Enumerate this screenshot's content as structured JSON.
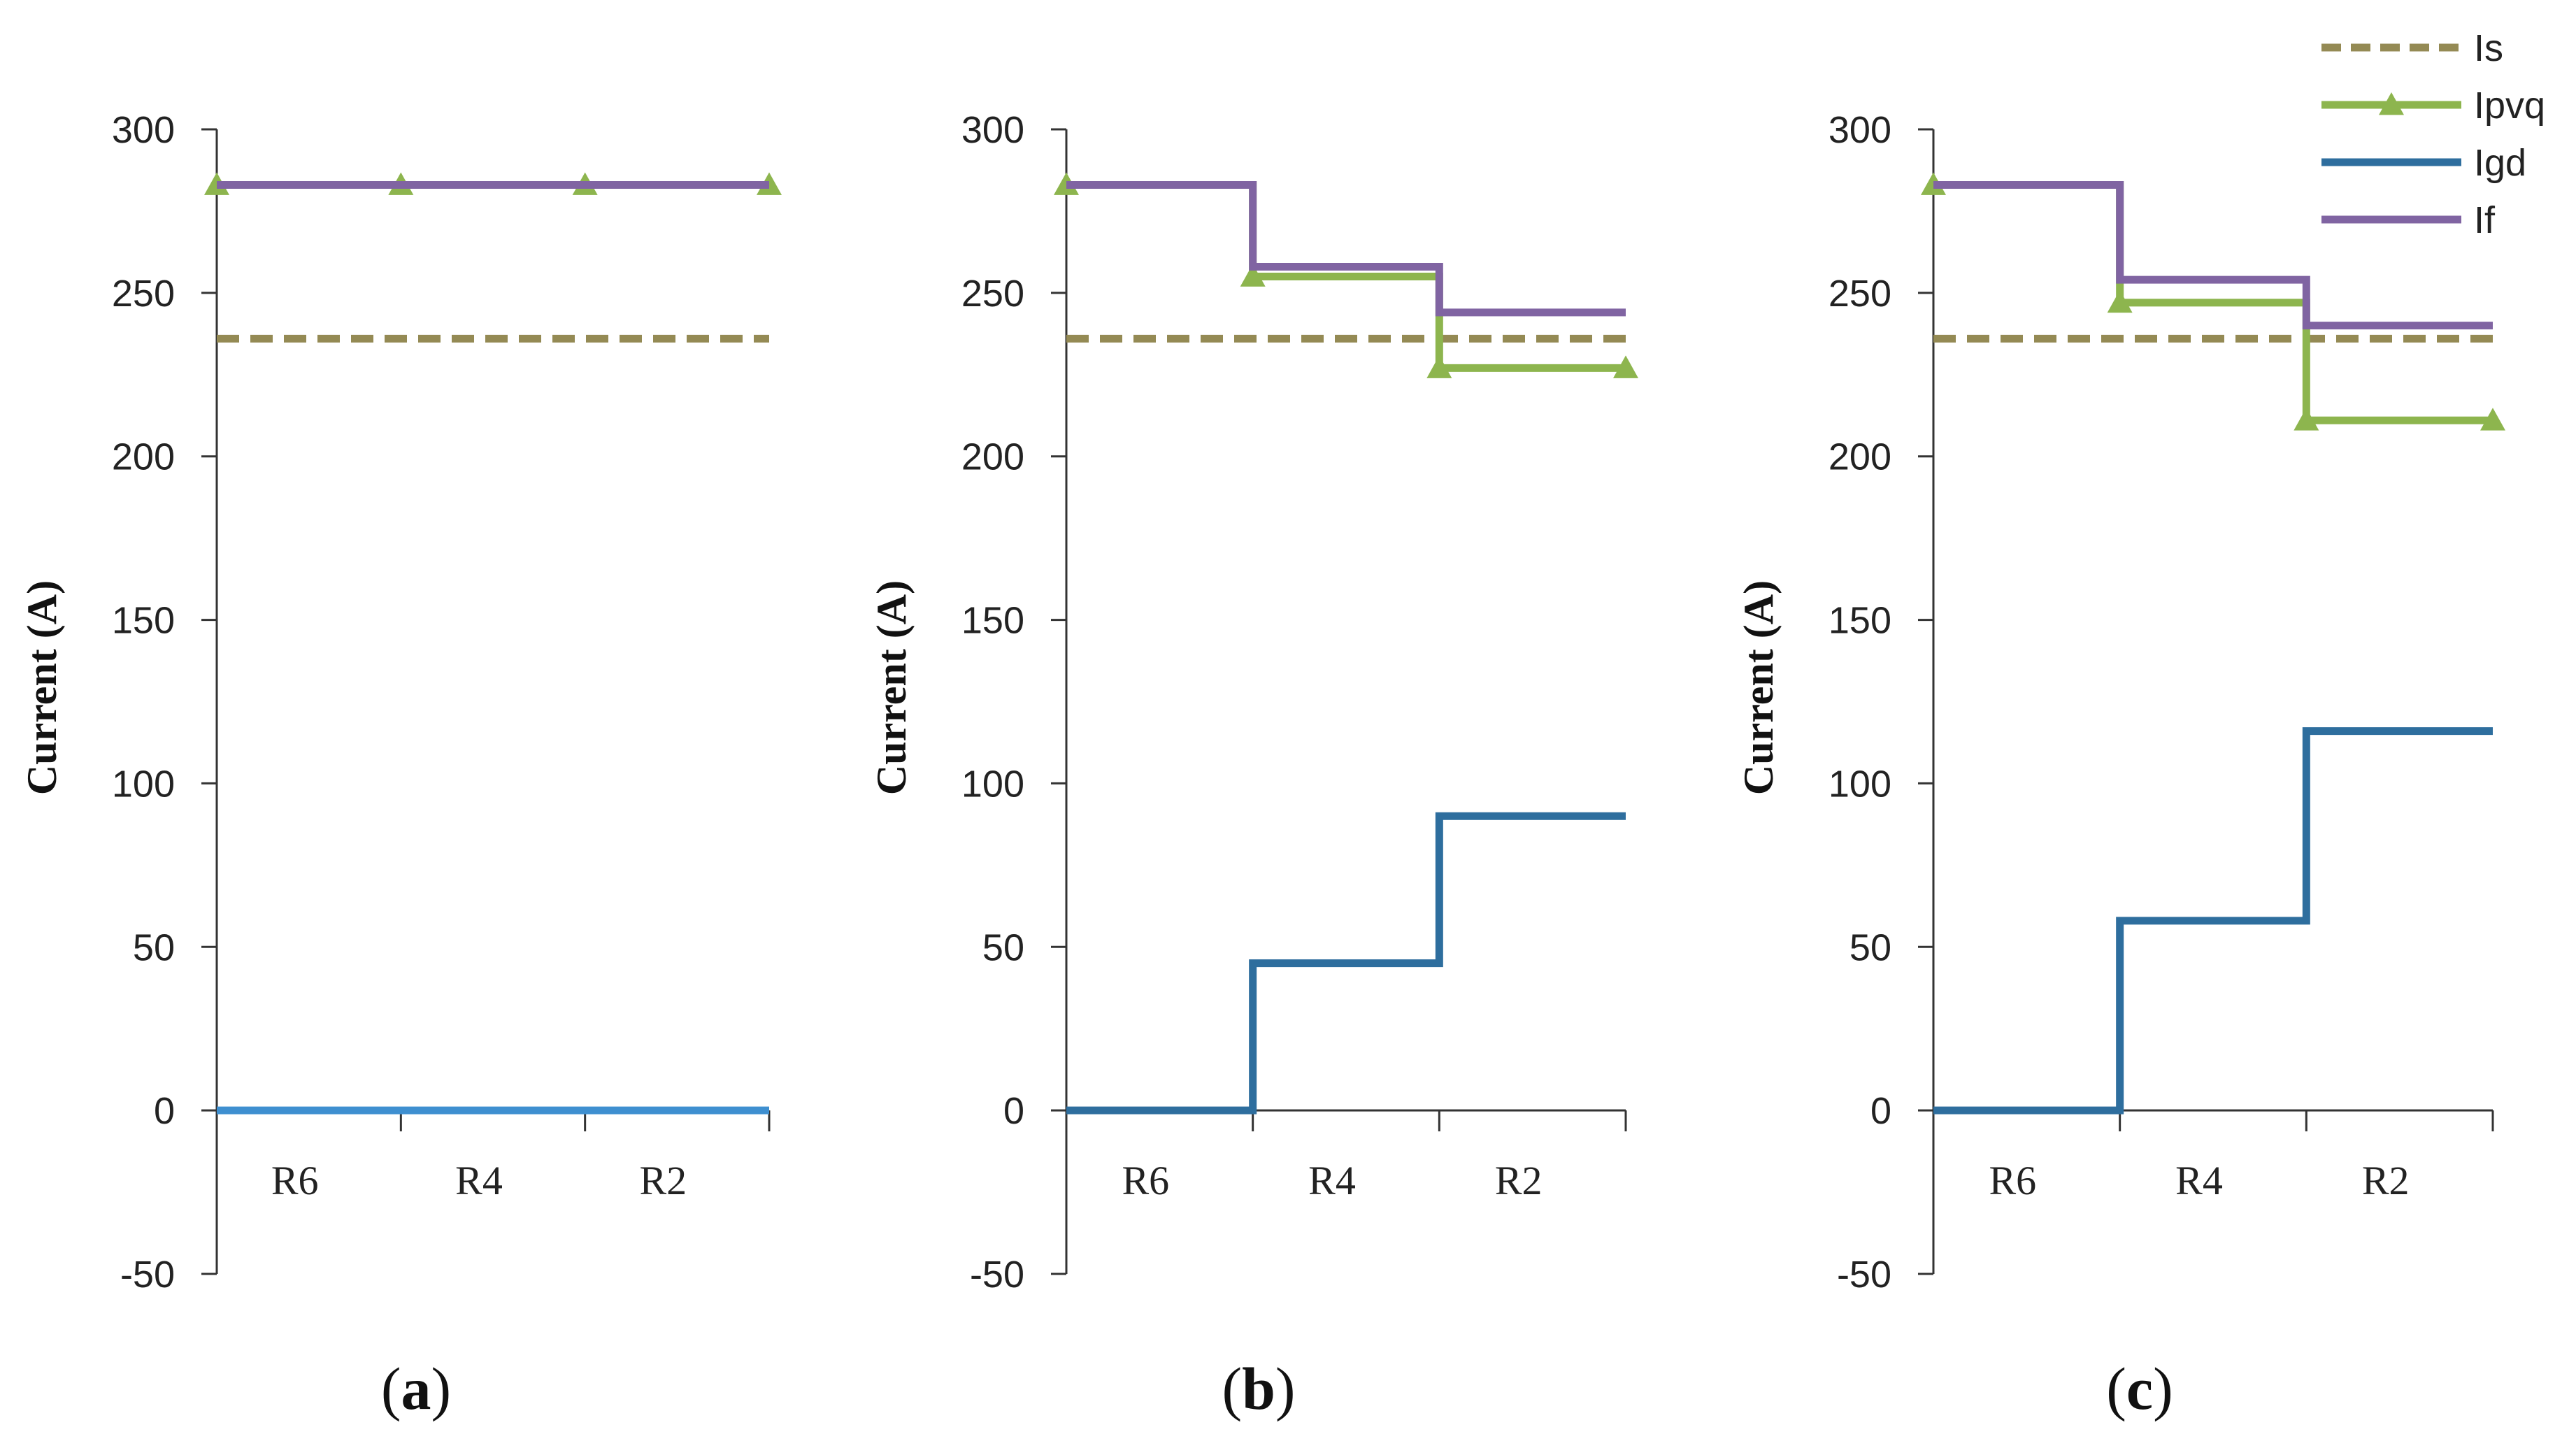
{
  "colors": {
    "Is": "#948A54",
    "Ipvq": "#8DB54E",
    "Igd": "#2E6E9E",
    "Igd_a": "#3E8FD0",
    "If": "#8064A2",
    "axis": "#333333"
  },
  "legend": {
    "items": [
      {
        "name": "Is",
        "style": "dashed"
      },
      {
        "name": "Ipvq",
        "style": "line-triangle"
      },
      {
        "name": "Igd",
        "style": "line"
      },
      {
        "name": "If",
        "style": "line"
      }
    ]
  },
  "chart_data": [
    {
      "type": "line",
      "panel_label": "a",
      "ylabel": "Current (A)",
      "ylim": [
        -50,
        300
      ],
      "yticks": [
        -50,
        0,
        50,
        100,
        150,
        200,
        250,
        300
      ],
      "categories": [
        "R6",
        "R4",
        "R2"
      ],
      "x_boundaries": [
        0,
        1,
        2,
        3
      ],
      "series": [
        {
          "name": "Is",
          "style": "dashed",
          "values": [
            236,
            236,
            236
          ]
        },
        {
          "name": "Ipvq",
          "style": "step-triangle",
          "values": [
            283,
            283,
            283
          ]
        },
        {
          "name": "Igd",
          "style": "step",
          "values": [
            0,
            0,
            0
          ]
        },
        {
          "name": "If",
          "style": "step",
          "values": [
            283,
            283,
            283
          ]
        }
      ]
    },
    {
      "type": "line",
      "panel_label": "b",
      "ylabel": "Current (A)",
      "ylim": [
        -50,
        300
      ],
      "yticks": [
        -50,
        0,
        50,
        100,
        150,
        200,
        250,
        300
      ],
      "categories": [
        "R6",
        "R4",
        "R2"
      ],
      "x_boundaries": [
        0,
        1,
        2,
        3
      ],
      "series": [
        {
          "name": "Is",
          "style": "dashed",
          "values": [
            236,
            236,
            236
          ]
        },
        {
          "name": "Ipvq",
          "style": "step-triangle",
          "values": [
            283,
            255,
            227
          ]
        },
        {
          "name": "Igd",
          "style": "step",
          "values": [
            0,
            45,
            90
          ]
        },
        {
          "name": "If",
          "style": "step",
          "values": [
            283,
            258,
            244
          ]
        }
      ]
    },
    {
      "type": "line",
      "panel_label": "c",
      "ylabel": "Current (A)",
      "ylim": [
        -50,
        300
      ],
      "yticks": [
        -50,
        0,
        50,
        100,
        150,
        200,
        250,
        300
      ],
      "categories": [
        "R6",
        "R4",
        "R2"
      ],
      "x_boundaries": [
        0,
        1,
        2,
        3
      ],
      "series": [
        {
          "name": "Is",
          "style": "dashed",
          "values": [
            236,
            236,
            236
          ]
        },
        {
          "name": "Ipvq",
          "style": "step-triangle",
          "values": [
            283,
            247,
            211
          ]
        },
        {
          "name": "Igd",
          "style": "step",
          "values": [
            0,
            58,
            116
          ]
        },
        {
          "name": "If",
          "style": "step",
          "values": [
            283,
            254,
            240
          ]
        }
      ]
    }
  ]
}
